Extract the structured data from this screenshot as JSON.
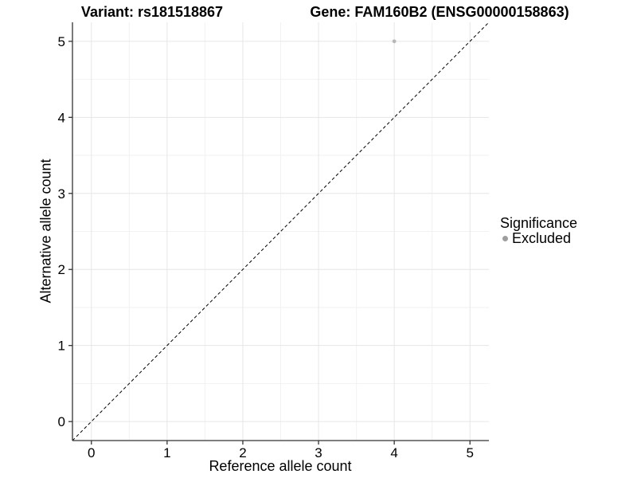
{
  "header": {
    "variant_title": "Variant: rs181518867",
    "gene_title": "Gene: FAM160B2 (ENSG00000158863)"
  },
  "legend": {
    "title": "Significance",
    "items": [
      {
        "label": "Excluded",
        "marker_color": "#9e9e9e"
      }
    ]
  },
  "chart_data": {
    "type": "scatter",
    "xlabel": "Reference allele count",
    "ylabel": "Alternative allele count",
    "xlim": [
      -0.25,
      5.25
    ],
    "ylim": [
      -0.25,
      5.25
    ],
    "xticks": [
      0,
      1,
      2,
      3,
      4,
      5
    ],
    "yticks": [
      0,
      1,
      2,
      3,
      4,
      5
    ],
    "grid": {
      "major": true,
      "minor": true
    },
    "legend_position": "right",
    "series": [
      {
        "name": "Excluded",
        "color": "#b7b7b7",
        "points": [
          {
            "x": 4,
            "y": 5
          }
        ]
      }
    ],
    "identity_line": {
      "style": "dashed",
      "color": "#000000",
      "from": [
        -0.25,
        -0.25
      ],
      "to": [
        5.25,
        5.25
      ]
    }
  },
  "colors": {
    "background": "#ffffff",
    "grid_major": "#e6e6e6",
    "grid_minor": "#f2f2f2",
    "axis_line": "#333333",
    "tick_label": "#000000"
  }
}
